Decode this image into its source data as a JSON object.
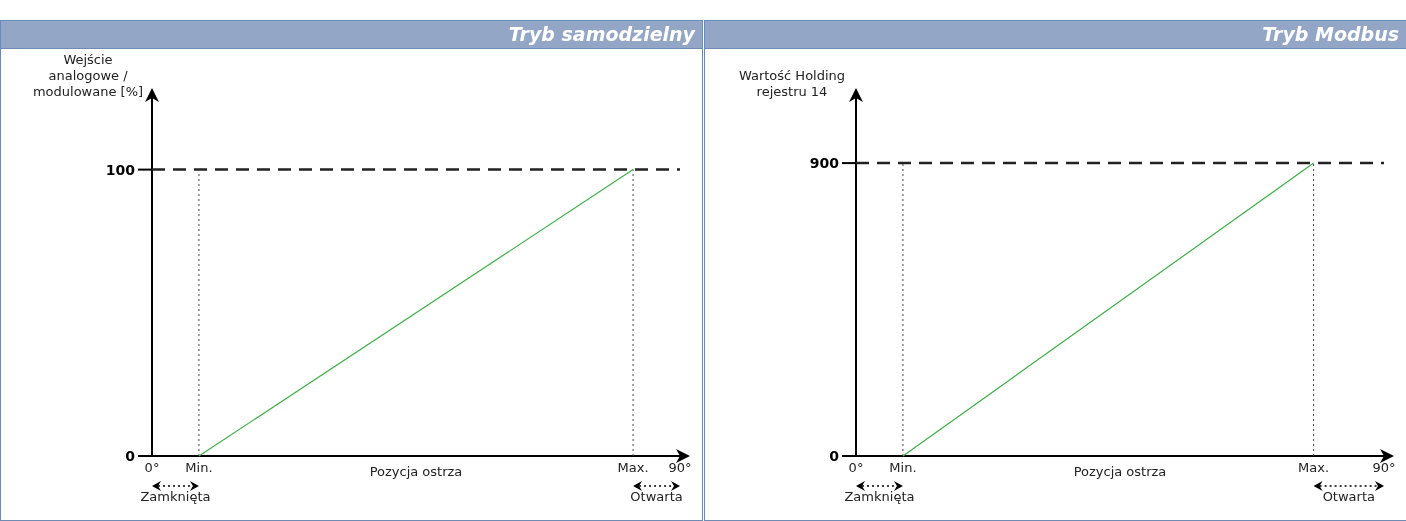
{
  "chart_data": [
    {
      "type": "line",
      "title": "Tryb samodzielny",
      "xlabel": "Pozycja ostrza",
      "ylabel": "Wejście analogowe / modulowane [%]",
      "xlim": [
        0,
        90
      ],
      "xticks": [
        {
          "value": 0,
          "label": "0°"
        },
        {
          "value": 8,
          "label": "Min."
        },
        {
          "value": 82,
          "label": "Max."
        },
        {
          "value": 90,
          "label": "90°"
        }
      ],
      "ylim": [
        0,
        125
      ],
      "yticks": [
        0,
        100
      ],
      "series": [
        {
          "color": "#3cb043",
          "x": [
            8,
            82
          ],
          "values": [
            0,
            100
          ]
        }
      ],
      "ref_lines": [
        {
          "axis": "y",
          "value": 100,
          "line_style": "dashed",
          "color": "#222222"
        },
        {
          "axis": "x",
          "value": 8,
          "line_style": "dotted",
          "color": "#444444"
        },
        {
          "axis": "x",
          "value": 82,
          "line_style": "dotted",
          "color": "#444444"
        }
      ],
      "annotations": [
        "Zamknięta",
        "Otwarta"
      ]
    },
    {
      "type": "line",
      "title": "Tryb Modbus",
      "xlabel": "Pozycja ostrza",
      "ylabel": "Wartość Holding rejestru 14",
      "xlim": [
        0,
        90
      ],
      "xticks": [
        {
          "value": 0,
          "label": "0°"
        },
        {
          "value": 8,
          "label": "Min."
        },
        {
          "value": 78,
          "label": "Max."
        },
        {
          "value": 90,
          "label": "90°"
        }
      ],
      "ylim": [
        0,
        1100
      ],
      "yticks": [
        0,
        900
      ],
      "series": [
        {
          "color": "#3cb043",
          "x": [
            8,
            78
          ],
          "values": [
            0,
            900
          ]
        }
      ],
      "ref_lines": [
        {
          "axis": "y",
          "value": 900,
          "line_style": "dashed",
          "color": "#222222"
        },
        {
          "axis": "x",
          "value": 8,
          "line_style": "dotted",
          "color": "#444444"
        },
        {
          "axis": "x",
          "value": 78,
          "line_style": "dotted",
          "color": "#444444"
        }
      ],
      "annotations": [
        "Zamknięta",
        "Otwarta"
      ]
    }
  ]
}
